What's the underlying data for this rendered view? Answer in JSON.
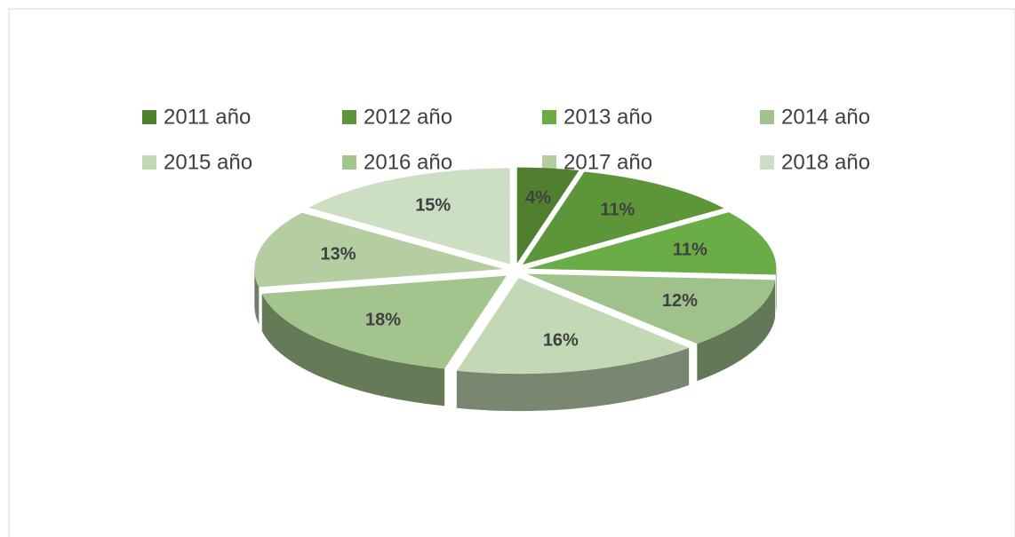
{
  "chart_data": {
    "type": "pie3d",
    "categories": [
      "2011 año",
      "2012 año",
      "2013 año",
      "2014 año",
      "2015 año",
      "2016 año",
      "2017 año",
      "2018 año"
    ],
    "values": [
      4,
      11,
      11,
      12,
      16,
      18,
      13,
      15
    ],
    "value_labels": [
      "4%",
      "11%",
      "11%",
      "12%",
      "16%",
      "18%",
      "13%",
      "15%"
    ],
    "colors": [
      "#4f7f2f",
      "#5d9638",
      "#6aac45",
      "#9fc28a",
      "#c3d8b5",
      "#a3c48d",
      "#b4cea2",
      "#cddfc2"
    ],
    "legend": "top"
  }
}
